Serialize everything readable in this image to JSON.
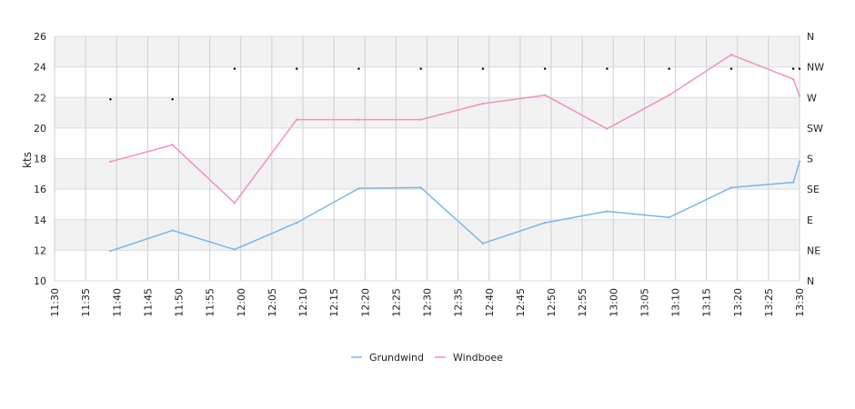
{
  "chart_data": {
    "type": "line",
    "ylabel": "kts",
    "ylim": [
      10,
      26
    ],
    "y_ticks": [
      "10",
      "12",
      "14",
      "16",
      "18",
      "20",
      "22",
      "24",
      "26"
    ],
    "direction_ticks": [
      "N",
      "NE",
      "E",
      "SE",
      "S",
      "SW",
      "W",
      "NW",
      "N"
    ],
    "x_ticks": [
      "11:30",
      "11:35",
      "11:40",
      "11:45",
      "11:50",
      "11:55",
      "12:00",
      "12:05",
      "12:10",
      "12:15",
      "12:20",
      "12:25",
      "12:30",
      "12:35",
      "12:40",
      "12:45",
      "12:50",
      "12:55",
      "13:00",
      "13:05",
      "13:10",
      "13:15",
      "13:20",
      "13:25",
      "13:30"
    ],
    "grid": true,
    "legend_position": "bottom",
    "series": [
      {
        "name": "Grundwind",
        "color": "#7cb5ec",
        "points": [
          [
            "11:39",
            11.95
          ],
          [
            "11:49",
            13.3
          ],
          [
            "11:59",
            12.05
          ],
          [
            "12:09",
            13.8
          ],
          [
            "12:19",
            16.05
          ],
          [
            "12:29",
            16.1
          ],
          [
            "12:39",
            12.45
          ],
          [
            "12:49",
            13.8
          ],
          [
            "12:59",
            14.55
          ],
          [
            "13:09",
            14.15
          ],
          [
            "13:19",
            16.1
          ],
          [
            "13:29",
            16.45
          ],
          [
            "13:30",
            17.8
          ]
        ]
      },
      {
        "name": "Windboee",
        "color": "#f28fc3",
        "points": [
          [
            "11:39",
            17.8
          ],
          [
            "11:49",
            18.9
          ],
          [
            "11:59",
            15.1
          ],
          [
            "12:09",
            20.55
          ],
          [
            "12:19",
            20.55
          ],
          [
            "12:29",
            20.55
          ],
          [
            "12:39",
            21.6
          ],
          [
            "12:49",
            22.15
          ],
          [
            "12:59",
            19.95
          ],
          [
            "13:09",
            22.15
          ],
          [
            "13:19",
            24.8
          ],
          [
            "13:29",
            23.2
          ],
          [
            "13:30",
            22.1
          ]
        ]
      }
    ],
    "direction_series": {
      "color": "#000000",
      "points": [
        [
          "11:39",
          "W"
        ],
        [
          "11:49",
          "W"
        ],
        [
          "11:59",
          "NW"
        ],
        [
          "12:09",
          "NW"
        ],
        [
          "12:19",
          "NW"
        ],
        [
          "12:29",
          "NW"
        ],
        [
          "12:39",
          "NW"
        ],
        [
          "12:49",
          "NW"
        ],
        [
          "12:59",
          "NW"
        ],
        [
          "13:09",
          "NW"
        ],
        [
          "13:19",
          "NW"
        ],
        [
          "13:29",
          "NW"
        ],
        [
          "13:30",
          "NW"
        ]
      ]
    }
  }
}
